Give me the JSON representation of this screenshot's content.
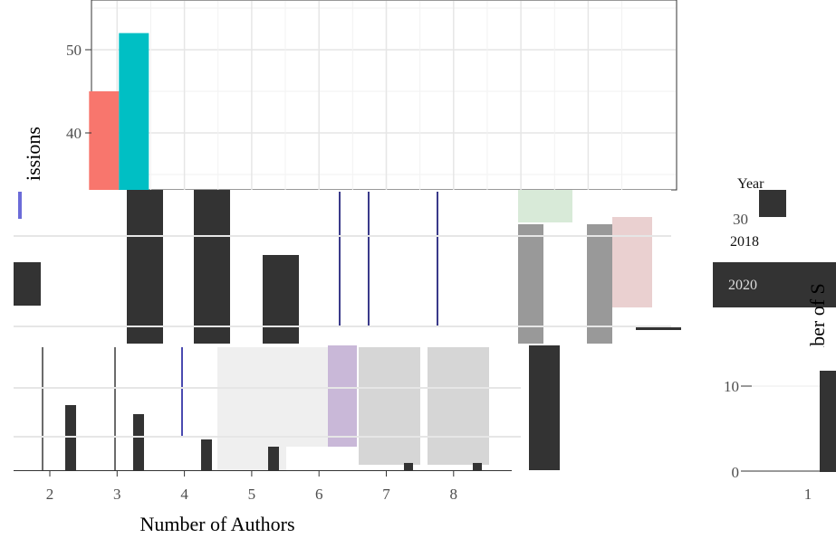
{
  "chart_data": [
    {
      "type": "bar",
      "xlabel": "Number of Authors",
      "ylabel": "issions",
      "x_ticks": [
        "2",
        "3",
        "4",
        "5",
        "6",
        "7",
        "8"
      ],
      "y_ticks": [
        40,
        50
      ],
      "categories": [
        3
      ],
      "series": [
        {
          "color": "#f8766d",
          "values": [
            45
          ]
        },
        {
          "color": "#00bfc4",
          "values": [
            52
          ]
        }
      ],
      "ylim": [
        34,
        55
      ],
      "grid": true
    },
    {
      "type": "bar",
      "ylabel": "mber of S",
      "x_ticks": [
        "1"
      ],
      "y_ticks": [
        0,
        10,
        30
      ],
      "legend_entries": [
        "2018",
        "2020"
      ],
      "legend_title": "Year",
      "grid": true
    }
  ],
  "colors": {
    "red": "#f8766d",
    "teal": "#00bfc4",
    "dark": "#333333",
    "grey": "#999999",
    "grid": "#ebebeb"
  }
}
